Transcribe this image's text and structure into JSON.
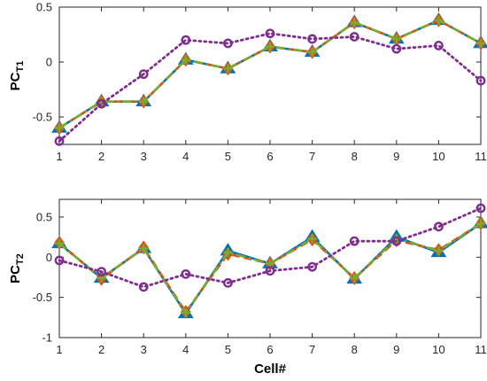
{
  "chart_data": [
    {
      "type": "line",
      "ylabel": "PC",
      "ylabel_sub": "T1",
      "xlabel": "",
      "x": [
        1,
        2,
        3,
        4,
        5,
        6,
        7,
        8,
        9,
        10,
        11
      ],
      "x_ticks": [
        "1",
        "2",
        "3",
        "4",
        "5",
        "6",
        "7",
        "8",
        "9",
        "10",
        "11"
      ],
      "ylim": [
        -0.75,
        0.5
      ],
      "y_ticks": [
        -0.5,
        0,
        0.5
      ],
      "y_tick_labels": [
        "-0.5",
        "0",
        "0.5"
      ],
      "grid": false,
      "series": [
        {
          "style": "solid-triangle",
          "color": "#0072BD",
          "values": [
            -0.6,
            -0.36,
            -0.36,
            0.02,
            -0.06,
            0.14,
            0.09,
            0.36,
            0.21,
            0.38,
            0.17
          ]
        },
        {
          "style": "dashed-diamond",
          "color": "#D95319",
          "values": [
            -0.6,
            -0.36,
            -0.36,
            0.02,
            -0.06,
            0.14,
            0.09,
            0.36,
            0.21,
            0.38,
            0.17
          ]
        },
        {
          "style": "dashdot-plus",
          "color": "#77AC30",
          "values": [
            -0.6,
            -0.36,
            -0.36,
            0.02,
            -0.06,
            0.14,
            0.09,
            0.36,
            0.21,
            0.38,
            0.17
          ]
        },
        {
          "style": "dotted-circle",
          "color": "#7E2F8E",
          "values": [
            -0.72,
            -0.38,
            -0.11,
            0.2,
            0.17,
            0.26,
            0.21,
            0.23,
            0.12,
            0.15,
            -0.17
          ]
        }
      ]
    },
    {
      "type": "line",
      "ylabel": "PC",
      "ylabel_sub": "T2",
      "xlabel": "Cell#",
      "x": [
        1,
        2,
        3,
        4,
        5,
        6,
        7,
        8,
        9,
        10,
        11
      ],
      "x_ticks": [
        "1",
        "2",
        "3",
        "4",
        "5",
        "6",
        "7",
        "8",
        "9",
        "10",
        "11"
      ],
      "ylim": [
        -1,
        0.72
      ],
      "y_ticks": [
        -1,
        -0.5,
        0,
        0.5
      ],
      "y_tick_labels": [
        "-1",
        "-0.5",
        "0",
        "0.5"
      ],
      "grid": false,
      "series": [
        {
          "style": "solid-triangle",
          "color": "#0072BD",
          "values": [
            0.17,
            -0.26,
            0.11,
            -0.7,
            0.08,
            -0.08,
            0.25,
            -0.27,
            0.25,
            0.06,
            0.42
          ]
        },
        {
          "style": "dashed-diamond",
          "color": "#D95319",
          "values": [
            0.18,
            -0.27,
            0.12,
            -0.68,
            0.04,
            -0.08,
            0.22,
            -0.26,
            0.21,
            0.09,
            0.42
          ]
        },
        {
          "style": "dashdot-plus",
          "color": "#77AC30",
          "values": [
            0.17,
            -0.26,
            0.11,
            -0.69,
            0.06,
            -0.08,
            0.23,
            -0.26,
            0.23,
            0.08,
            0.42
          ]
        },
        {
          "style": "dotted-circle",
          "color": "#7E2F8E",
          "values": [
            -0.04,
            -0.18,
            -0.37,
            -0.21,
            -0.32,
            -0.17,
            -0.12,
            0.2,
            0.2,
            0.38,
            0.61
          ]
        }
      ]
    }
  ]
}
